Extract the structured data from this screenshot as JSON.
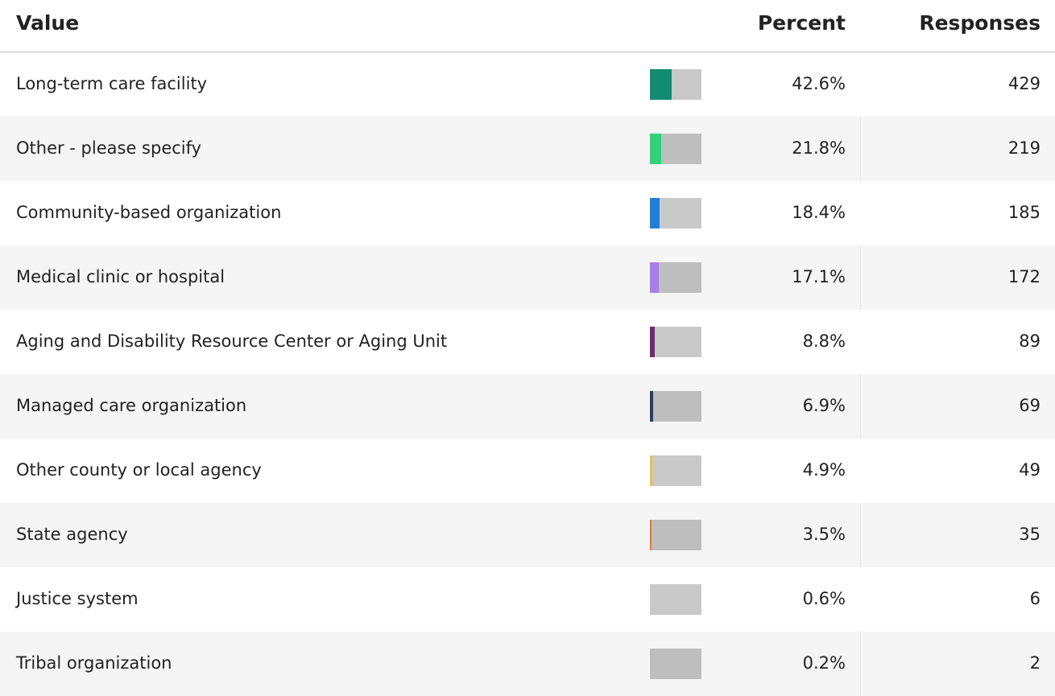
{
  "table": {
    "header": [
      "Value",
      "Percent",
      "Responses"
    ],
    "rows": [
      {
        "value": "Long-term care facility",
        "percent": 42.6,
        "percent_label": "42.6%",
        "responses": 429,
        "color": "#138a72"
      },
      {
        "value": "Other - please specify",
        "percent": 21.8,
        "percent_label": "21.8%",
        "responses": 219,
        "color": "#33d17a"
      },
      {
        "value": "Community-based organization",
        "percent": 18.4,
        "percent_label": "18.4%",
        "responses": 185,
        "color": "#1f7fd6"
      },
      {
        "value": "Medical clinic or hospital",
        "percent": 17.1,
        "percent_label": "17.1%",
        "responses": 172,
        "color": "#a57fe6"
      },
      {
        "value": "Aging and Disability Resource Center or Aging Unit",
        "percent": 8.8,
        "percent_label": "8.8%",
        "responses": 89,
        "color": "#6b2d6e"
      },
      {
        "value": "Managed care organization",
        "percent": 6.9,
        "percent_label": "6.9%",
        "responses": 69,
        "color": "#2c3e5a"
      },
      {
        "value": "Other county or local agency",
        "percent": 4.9,
        "percent_label": "4.9%",
        "responses": 49,
        "color": "#e8c24a"
      },
      {
        "value": "State agency",
        "percent": 3.5,
        "percent_label": "3.5%",
        "responses": 35,
        "color": "#e07b39"
      },
      {
        "value": "Justice system",
        "percent": 0.6,
        "percent_label": "0.6%",
        "responses": 6
      },
      {
        "value": "Tribal organization",
        "percent": 0.2,
        "percent_label": "0.2%",
        "responses": 2
      }
    ]
  }
}
